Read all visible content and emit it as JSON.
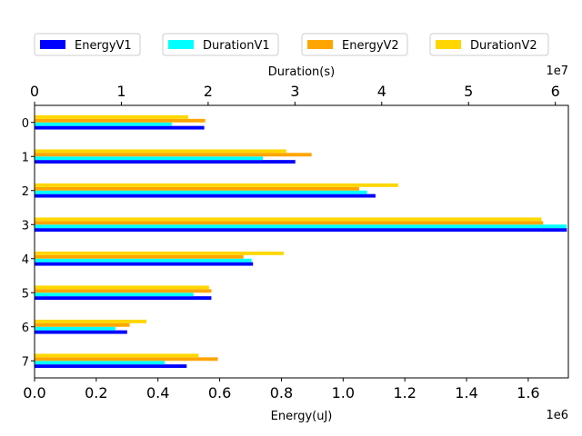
{
  "chart_data": {
    "type": "bar",
    "orientation": "horizontal",
    "categories": [
      "0",
      "1",
      "2",
      "3",
      "4",
      "5",
      "6",
      "7"
    ],
    "series": [
      {
        "name": "EnergyV1",
        "axis": "bottom",
        "color": "#0000ff",
        "values": [
          550000,
          845000,
          1105000,
          1725000,
          708000,
          573000,
          300000,
          493000
        ]
      },
      {
        "name": "DurationV1",
        "axis": "top",
        "color": "#00ffff",
        "values": [
          15800000,
          26300000,
          38300000,
          61300000,
          25000000,
          18300000,
          9300000,
          15000000
        ]
      },
      {
        "name": "EnergyV2",
        "axis": "bottom",
        "color": "#ffa500",
        "values": [
          553000,
          898000,
          1052000,
          1648000,
          677000,
          573000,
          308000,
          594000
        ]
      },
      {
        "name": "DurationV2",
        "axis": "top",
        "color": "#ffd700",
        "values": [
          17700000,
          29000000,
          41900000,
          58400000,
          28700000,
          20100000,
          12900000,
          18900000
        ]
      }
    ],
    "xlabel_bottom": "Energy(uJ)",
    "xlabel_top": "Duration(s)",
    "bottom_ticks": [
      "0.0",
      "0.2",
      "0.4",
      "0.6",
      "0.8",
      "1.0",
      "1.2",
      "1.4",
      "1.6"
    ],
    "bottom_tick_values": [
      0,
      200000,
      400000,
      600000,
      800000,
      1000000,
      1200000,
      1400000,
      1600000
    ],
    "bottom_xlim": [
      0,
      1730000
    ],
    "bottom_offset": "1e6",
    "top_ticks": [
      "0",
      "1",
      "2",
      "3",
      "4",
      "5",
      "6"
    ],
    "top_tick_values": [
      0,
      10000000,
      20000000,
      30000000,
      40000000,
      50000000,
      60000000
    ],
    "top_xlim": [
      0,
      61500000
    ],
    "top_offset": "1e7",
    "grid": false,
    "legend_placement": "top, outside plot, 4 columns"
  }
}
